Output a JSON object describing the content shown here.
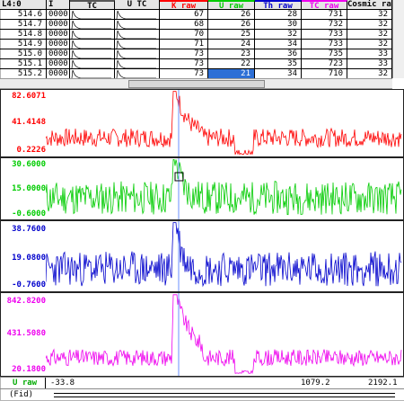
{
  "table": {
    "headers": {
      "t1": "L4:0",
      "t2": "I",
      "t3": "TC",
      "t4": "U TC",
      "t5": "K raw",
      "t6": "U raw",
      "t7": "Th raw",
      "t8": "TC raw",
      "t9": "Cosmic raw"
    },
    "rows": [
      {
        "depth": "514.6",
        "flag": "0000",
        "k": "67",
        "u": "26",
        "th": "28",
        "tc": "731",
        "cos": "32"
      },
      {
        "depth": "514.7",
        "flag": "0000",
        "k": "68",
        "u": "26",
        "th": "30",
        "tc": "732",
        "cos": "32"
      },
      {
        "depth": "514.8",
        "flag": "0000",
        "k": "70",
        "u": "25",
        "th": "32",
        "tc": "733",
        "cos": "32"
      },
      {
        "depth": "514.9",
        "flag": "0000",
        "k": "71",
        "u": "24",
        "th": "34",
        "tc": "733",
        "cos": "32"
      },
      {
        "depth": "515.0",
        "flag": "0000",
        "k": "73",
        "u": "23",
        "th": "36",
        "tc": "735",
        "cos": "33"
      },
      {
        "depth": "515.1",
        "flag": "0000",
        "k": "73",
        "u": "22",
        "th": "35",
        "tc": "723",
        "cos": "33"
      },
      {
        "depth": "515.2",
        "flag": "0000",
        "k": "73",
        "u": "21",
        "th": "34",
        "tc": "710",
        "cos": "32"
      }
    ]
  },
  "panels": [
    {
      "name": "k-raw",
      "color": "#ff0000",
      "top": "82.6071",
      "mid": "41.4148",
      "bot": "0.2226"
    },
    {
      "name": "u-raw",
      "color": "#00cc00",
      "top": "30.6000",
      "mid": "15.0000",
      "bot": "-0.6000"
    },
    {
      "name": "th-raw",
      "color": "#0000cc",
      "top": "38.7600",
      "mid": "19.0800",
      "bot": "-0.7600"
    },
    {
      "name": "tc-raw",
      "color": "#ee00ee",
      "top": "842.8200",
      "mid": "431.5080",
      "bot": "20.1800"
    }
  ],
  "footer": {
    "channel": "U raw",
    "left": "-33.8",
    "mid": "1079.2",
    "right": "2192.1",
    "mode": "(Fid)"
  },
  "colors": {
    "k": "#ff0000",
    "u": "#00cc00",
    "th": "#0000cc",
    "tc": "#ee00ee",
    "cursor": "#6a8fff"
  }
}
